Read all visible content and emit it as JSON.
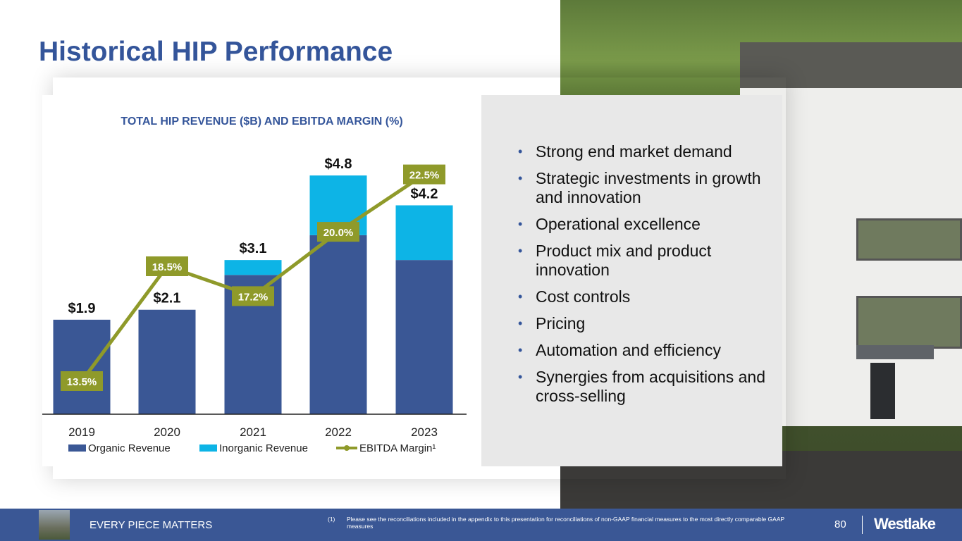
{
  "title": "Historical HIP Performance",
  "chart_data": {
    "type": "bar",
    "stacked": true,
    "title": "TOTAL HIP REVENUE ($B) AND EBITDA MARGIN (%)",
    "categories": [
      "2019",
      "2020",
      "2021",
      "2022",
      "2023"
    ],
    "series": [
      {
        "name": "Organic Revenue",
        "type": "bar",
        "color": "#3a5795",
        "values": [
          1.9,
          2.1,
          2.8,
          3.6,
          3.1
        ]
      },
      {
        "name": "Inorganic Revenue",
        "type": "bar",
        "color": "#0db4e6",
        "values": [
          0,
          0,
          0.3,
          1.2,
          1.1
        ]
      },
      {
        "name": "EBITDA Margin¹",
        "type": "line",
        "axis": "secondary",
        "color": "#8f9a2a",
        "values": [
          13.5,
          18.5,
          17.2,
          20.0,
          22.5
        ]
      }
    ],
    "total_labels": [
      "$1.9",
      "$2.1",
      "$3.1",
      "$4.8",
      "$4.2"
    ],
    "margin_labels": [
      "13.5%",
      "18.5%",
      "17.2%",
      "20.0%",
      "22.5%"
    ],
    "legend_position": "bottom",
    "grid": false
  },
  "bullets": [
    "Strong end market demand",
    "Strategic investments in growth and innovation",
    "Operational excellence",
    "Product mix and product innovation",
    "Cost controls",
    "Pricing",
    "Automation and efficiency",
    "Synergies from acquisitions and cross-selling"
  ],
  "footer": {
    "tagline": "EVERY PIECE MATTERS",
    "footnote_num": "(1)",
    "footnote": "Please see the reconciliations included in the appendix to this presentation for reconciliations of non-GAAP financial measures to the most directly comparable GAAP measures",
    "page": "80",
    "logo": "Westlake"
  }
}
